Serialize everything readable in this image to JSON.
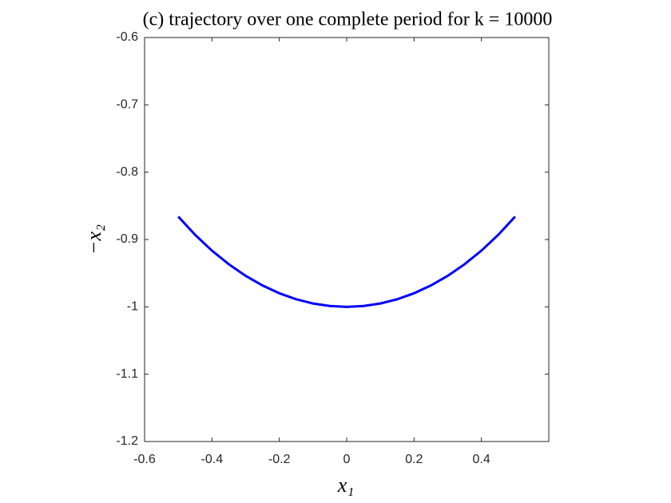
{
  "chart_data": {
    "type": "line",
    "title": "(c) trajectory over one complete period for k = 10000",
    "xlabel": "x₁",
    "ylabel": "−x₂",
    "x": [
      -0.5,
      -0.45,
      -0.4,
      -0.35,
      -0.3,
      -0.25,
      -0.2,
      -0.15,
      -0.1,
      -0.05,
      0,
      0.05,
      0.1,
      0.15,
      0.2,
      0.25,
      0.3,
      0.35,
      0.4,
      0.45,
      0.5
    ],
    "series": [
      {
        "color": "#0000ff",
        "values": [
          -0.866,
          -0.893,
          -0.9165,
          -0.9367,
          -0.9539,
          -0.9682,
          -0.9798,
          -0.9887,
          -0.995,
          -0.9987,
          -1,
          -0.9987,
          -0.995,
          -0.9887,
          -0.9798,
          -0.9682,
          -0.9539,
          -0.9367,
          -0.9165,
          -0.893,
          -0.866
        ]
      }
    ],
    "xlim": [
      -0.6,
      0.6
    ],
    "ylim": [
      -1.2,
      -0.6
    ],
    "xticks": [
      -0.6,
      -0.4,
      -0.2,
      0,
      0.2,
      0.4
    ],
    "yticks": [
      -1.2,
      -1.1,
      -1,
      -0.9,
      -0.8,
      -0.7,
      -0.6
    ]
  }
}
